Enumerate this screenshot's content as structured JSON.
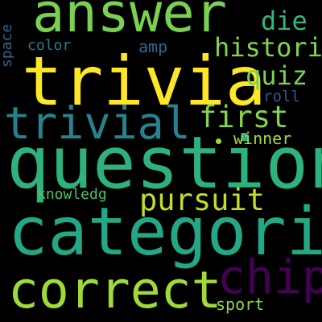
{
  "words": {
    "answer": {
      "text": "answer",
      "color": "#7AD151"
    },
    "trivia": {
      "text": "trivia",
      "color": "#FDE725"
    },
    "question": {
      "text": "question",
      "color": "#2DB27D"
    },
    "categori": {
      "text": "categori",
      "color": "#22A884"
    },
    "correct": {
      "text": "correct",
      "color": "#A0DA39"
    },
    "trivial": {
      "text": "trivial",
      "color": "#26828E"
    },
    "chip": {
      "text": "chip",
      "color": "#440154"
    },
    "pursuit": {
      "text": "pursuit",
      "color": "#C2DF23"
    },
    "first": {
      "text": "first",
      "color": "#86D549"
    },
    "quiz": {
      "text": "quiz",
      "color": "#7AD151"
    },
    "histori": {
      "text": "histori",
      "color": "#84D44B"
    },
    "die": {
      "text": "die",
      "color": "#35B779"
    },
    "winner": {
      "text": "winner",
      "color": "#A5DB36"
    },
    "knowledg": {
      "text": "knowledg",
      "color": "#4AC16D"
    },
    "roll": {
      "text": "roll",
      "color": "#3B528B"
    },
    "color": {
      "text": "color",
      "color": "#2A788E"
    },
    "amp": {
      "text": "amp",
      "color": "#31688E"
    },
    "space": {
      "text": "space",
      "color": "#33638D"
    },
    "sport": {
      "text": "sport",
      "color": "#8FD744"
    }
  },
  "dot_color": "#9DD93B"
}
